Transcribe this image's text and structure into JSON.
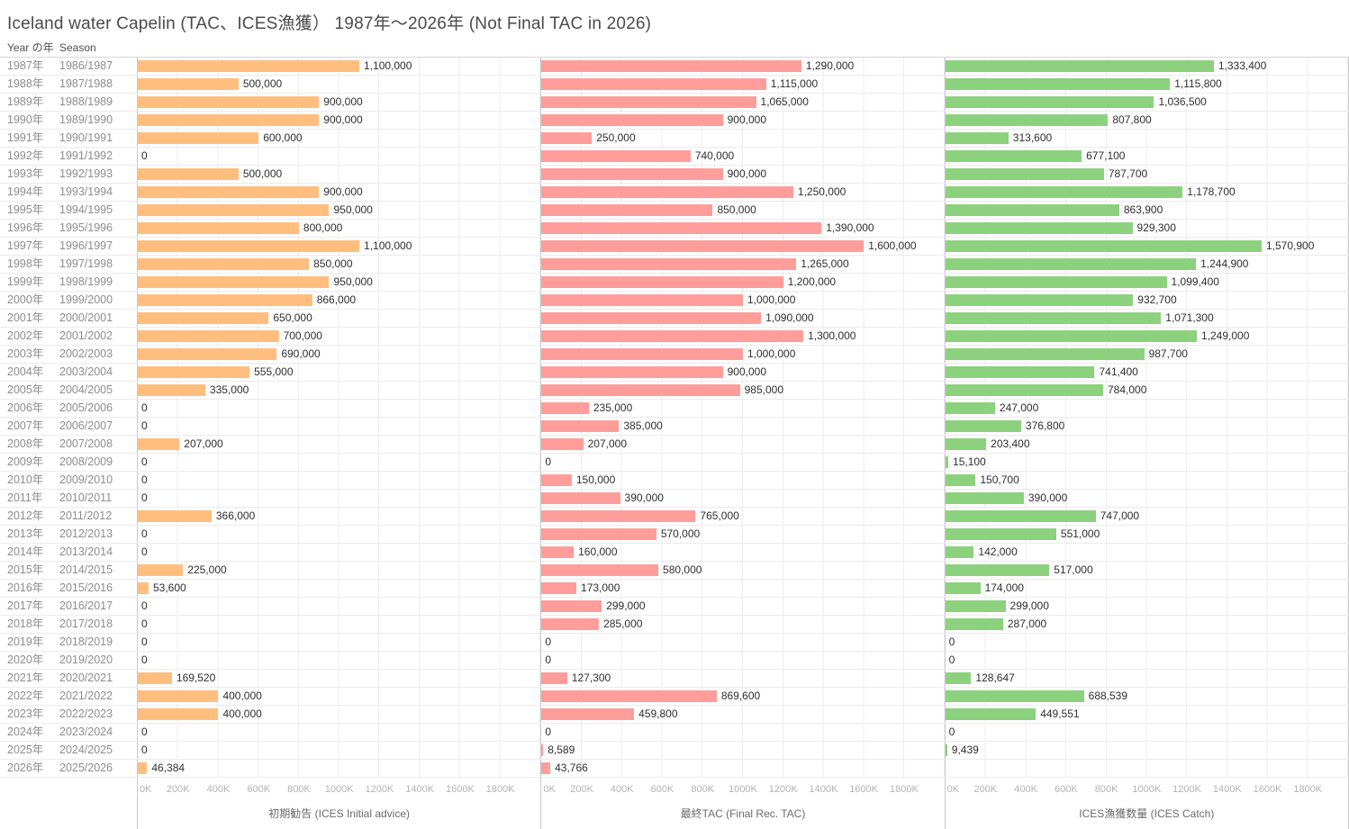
{
  "title": "Iceland water Capelin (TAC、ICES漁獲） 1987年～2026年 (Not Final TAC in 2026)",
  "column_headers": {
    "year": "Year の年",
    "season": "Season"
  },
  "chart_data": {
    "type": "bar",
    "orientation": "horizontal",
    "x_axis": {
      "ticks": [
        "0K",
        "200K",
        "400K",
        "600K",
        "800K",
        "1000K",
        "1200K",
        "1400K",
        "1600K",
        "1800K"
      ],
      "tick_step": 200000,
      "max": 2000000,
      "grid": true
    },
    "panels": [
      {
        "key": "advice",
        "name": "初期勧告 (ICES Initial advice)",
        "color": "#FFBE7D"
      },
      {
        "key": "tac",
        "name": "最終TAC (Final Rec. TAC)",
        "color": "#FF9D9A"
      },
      {
        "key": "catch",
        "name": "ICES漁獲数量 (ICES Catch)",
        "color": "#8CD17D"
      }
    ],
    "rows": [
      {
        "year": "1987年",
        "season": "1986/1987",
        "advice": 1100000,
        "tac": 1290000,
        "catch": 1333400
      },
      {
        "year": "1988年",
        "season": "1987/1988",
        "advice": 500000,
        "tac": 1115000,
        "catch": 1115800
      },
      {
        "year": "1989年",
        "season": "1988/1989",
        "advice": 900000,
        "tac": 1065000,
        "catch": 1036500
      },
      {
        "year": "1990年",
        "season": "1989/1990",
        "advice": 900000,
        "tac": 900000,
        "catch": 807800
      },
      {
        "year": "1991年",
        "season": "1990/1991",
        "advice": 600000,
        "tac": 250000,
        "catch": 313600
      },
      {
        "year": "1992年",
        "season": "1991/1992",
        "advice": 0,
        "tac": 740000,
        "catch": 677100
      },
      {
        "year": "1993年",
        "season": "1992/1993",
        "advice": 500000,
        "tac": 900000,
        "catch": 787700
      },
      {
        "year": "1994年",
        "season": "1993/1994",
        "advice": 900000,
        "tac": 1250000,
        "catch": 1178700
      },
      {
        "year": "1995年",
        "season": "1994/1995",
        "advice": 950000,
        "tac": 850000,
        "catch": 863900
      },
      {
        "year": "1996年",
        "season": "1995/1996",
        "advice": 800000,
        "tac": 1390000,
        "catch": 929300
      },
      {
        "year": "1997年",
        "season": "1996/1997",
        "advice": 1100000,
        "tac": 1600000,
        "catch": 1570900
      },
      {
        "year": "1998年",
        "season": "1997/1998",
        "advice": 850000,
        "tac": 1265000,
        "catch": 1244900
      },
      {
        "year": "1999年",
        "season": "1998/1999",
        "advice": 950000,
        "tac": 1200000,
        "catch": 1099400
      },
      {
        "year": "2000年",
        "season": "1999/2000",
        "advice": 866000,
        "tac": 1000000,
        "catch": 932700
      },
      {
        "year": "2001年",
        "season": "2000/2001",
        "advice": 650000,
        "tac": 1090000,
        "catch": 1071300
      },
      {
        "year": "2002年",
        "season": "2001/2002",
        "advice": 700000,
        "tac": 1300000,
        "catch": 1249000
      },
      {
        "year": "2003年",
        "season": "2002/2003",
        "advice": 690000,
        "tac": 1000000,
        "catch": 987700
      },
      {
        "year": "2004年",
        "season": "2003/2004",
        "advice": 555000,
        "tac": 900000,
        "catch": 741400
      },
      {
        "year": "2005年",
        "season": "2004/2005",
        "advice": 335000,
        "tac": 985000,
        "catch": 784000
      },
      {
        "year": "2006年",
        "season": "2005/2006",
        "advice": 0,
        "tac": 235000,
        "catch": 247000
      },
      {
        "year": "2007年",
        "season": "2006/2007",
        "advice": 0,
        "tac": 385000,
        "catch": 376800
      },
      {
        "year": "2008年",
        "season": "2007/2008",
        "advice": 207000,
        "tac": 207000,
        "catch": 203400
      },
      {
        "year": "2009年",
        "season": "2008/2009",
        "advice": 0,
        "tac": 0,
        "catch": 15100
      },
      {
        "year": "2010年",
        "season": "2009/2010",
        "advice": 0,
        "tac": 150000,
        "catch": 150700
      },
      {
        "year": "2011年",
        "season": "2010/2011",
        "advice": 0,
        "tac": 390000,
        "catch": 390000
      },
      {
        "year": "2012年",
        "season": "2011/2012",
        "advice": 366000,
        "tac": 765000,
        "catch": 747000
      },
      {
        "year": "2013年",
        "season": "2012/2013",
        "advice": 0,
        "tac": 570000,
        "catch": 551000
      },
      {
        "year": "2014年",
        "season": "2013/2014",
        "advice": 0,
        "tac": 160000,
        "catch": 142000
      },
      {
        "year": "2015年",
        "season": "2014/2015",
        "advice": 225000,
        "tac": 580000,
        "catch": 517000
      },
      {
        "year": "2016年",
        "season": "2015/2016",
        "advice": 53600,
        "tac": 173000,
        "catch": 174000
      },
      {
        "year": "2017年",
        "season": "2016/2017",
        "advice": 0,
        "tac": 299000,
        "catch": 299000
      },
      {
        "year": "2018年",
        "season": "2017/2018",
        "advice": 0,
        "tac": 285000,
        "catch": 287000
      },
      {
        "year": "2019年",
        "season": "2018/2019",
        "advice": 0,
        "tac": 0,
        "catch": 0
      },
      {
        "year": "2020年",
        "season": "2019/2020",
        "advice": 0,
        "tac": 0,
        "catch": 0
      },
      {
        "year": "2021年",
        "season": "2020/2021",
        "advice": 169520,
        "tac": 127300,
        "catch": 128647
      },
      {
        "year": "2022年",
        "season": "2021/2022",
        "advice": 400000,
        "tac": 869600,
        "catch": 688539
      },
      {
        "year": "2023年",
        "season": "2022/2023",
        "advice": 400000,
        "tac": 459800,
        "catch": 449551
      },
      {
        "year": "2024年",
        "season": "2023/2024",
        "advice": 0,
        "tac": 0,
        "catch": 0
      },
      {
        "year": "2025年",
        "season": "2024/2025",
        "advice": 0,
        "tac": 8589,
        "catch": 9439
      },
      {
        "year": "2026年",
        "season": "2025/2026",
        "advice": 46384,
        "tac": 43766,
        "catch": null
      }
    ]
  }
}
